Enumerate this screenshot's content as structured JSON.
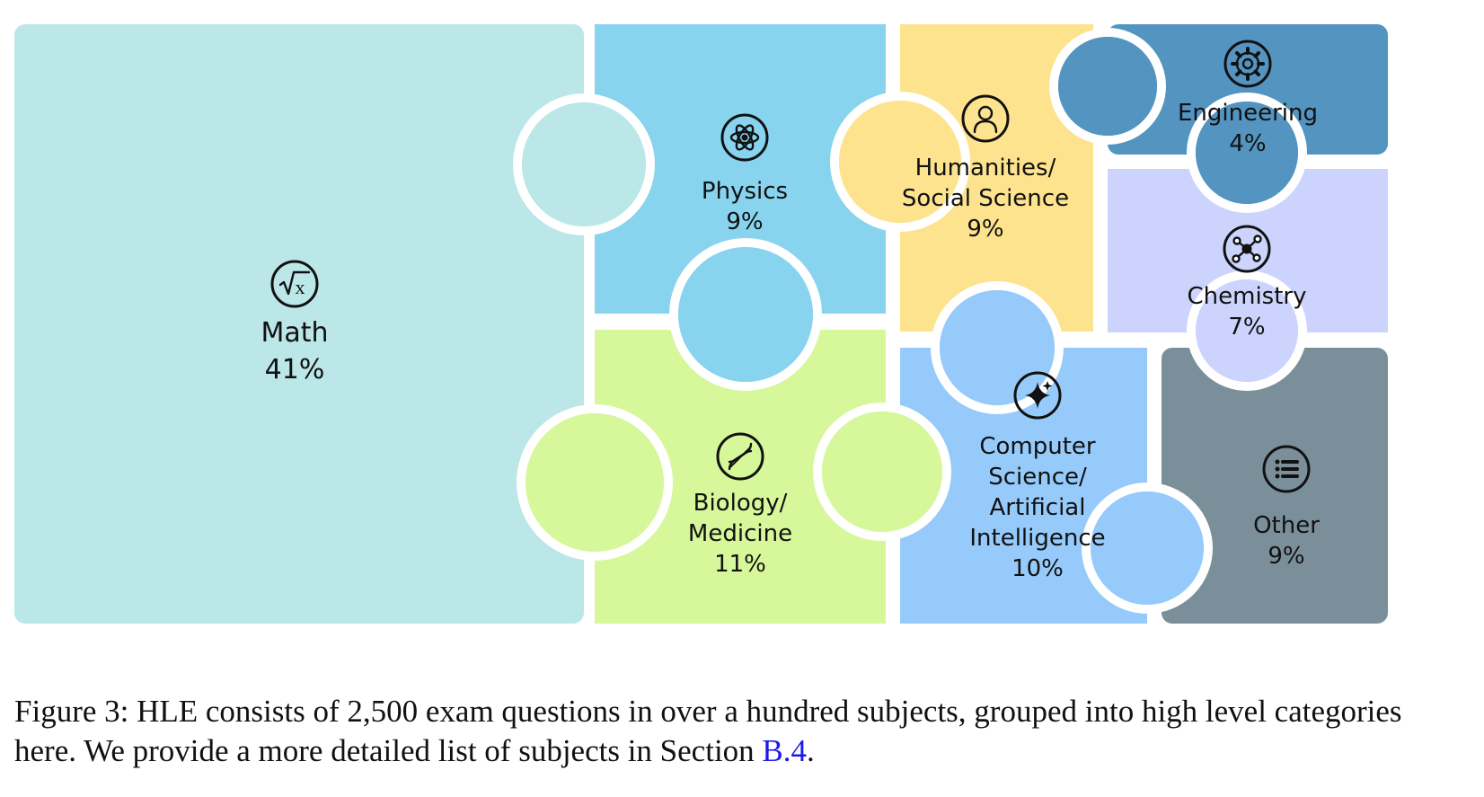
{
  "chart_data": {
    "type": "treemap",
    "categories": [
      {
        "id": "math",
        "lines": [
          "Math"
        ],
        "value_label": "41%",
        "value": 41,
        "color": "#bbe7e8",
        "icon": "sqrt-x-icon"
      },
      {
        "id": "physics",
        "lines": [
          "Physics"
        ],
        "value_label": "9%",
        "value": 9,
        "color": "#88d3ee",
        "icon": "atom-icon"
      },
      {
        "id": "humanities",
        "lines": [
          "Humanities/",
          "Social Science"
        ],
        "value_label": "9%",
        "value": 9,
        "color": "#fde38e",
        "icon": "person-icon"
      },
      {
        "id": "engineering",
        "lines": [
          "Engineering"
        ],
        "value_label": "4%",
        "value": 4,
        "color": "#5394c0",
        "icon": "gear-icon"
      },
      {
        "id": "chemistry",
        "lines": [
          "Chemistry"
        ],
        "value_label": "7%",
        "value": 7,
        "color": "#ccd4fd",
        "icon": "molecule-icon"
      },
      {
        "id": "biology",
        "lines": [
          "Biology/",
          "Medicine"
        ],
        "value_label": "11%",
        "value": 11,
        "color": "#d6f79a",
        "icon": "dna-icon"
      },
      {
        "id": "cs",
        "lines": [
          "Computer",
          "Science/",
          "Artificial",
          "Intelligence"
        ],
        "value_label": "10%",
        "value": 10,
        "color": "#95cafa",
        "icon": "sparkle-icon"
      },
      {
        "id": "other",
        "lines": [
          "Other"
        ],
        "value_label": "9%",
        "value": 9,
        "color": "#7b8f9b",
        "icon": "list-icon"
      }
    ]
  },
  "caption": {
    "text": "Figure 3: HLE consists of 2,500 exam questions in over a hundred subjects, grouped into high level categories here. We provide a more detailed list of subjects in Section ",
    "link": "B.4",
    "end": "."
  }
}
